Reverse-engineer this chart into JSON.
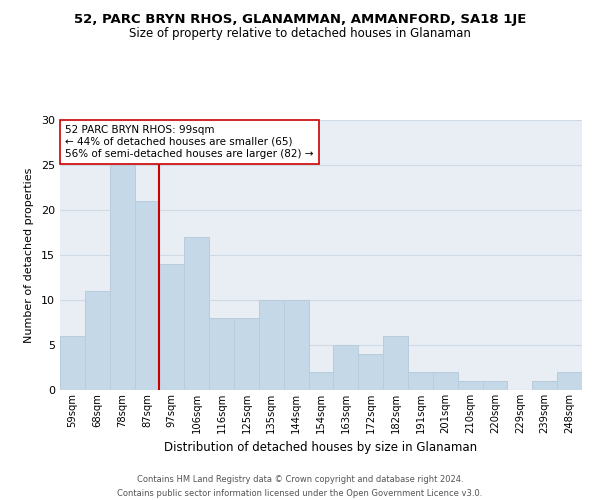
{
  "title": "52, PARC BRYN RHOS, GLANAMMAN, AMMANFORD, SA18 1JE",
  "subtitle": "Size of property relative to detached houses in Glanaman",
  "xlabel": "Distribution of detached houses by size in Glanaman",
  "ylabel": "Number of detached properties",
  "categories": [
    "59sqm",
    "68sqm",
    "78sqm",
    "87sqm",
    "97sqm",
    "106sqm",
    "116sqm",
    "125sqm",
    "135sqm",
    "144sqm",
    "154sqm",
    "163sqm",
    "172sqm",
    "182sqm",
    "191sqm",
    "201sqm",
    "210sqm",
    "220sqm",
    "229sqm",
    "239sqm",
    "248sqm"
  ],
  "values": [
    6,
    11,
    25,
    21,
    14,
    17,
    8,
    8,
    10,
    10,
    2,
    5,
    4,
    6,
    2,
    2,
    1,
    1,
    0,
    1,
    2
  ],
  "bar_color": "#c5d8e8",
  "bar_edge_color": "#b8ccdc",
  "grid_color": "#d0dae4",
  "background_color": "#e8eef4",
  "vline_color": "#cc0000",
  "vline_x": 4,
  "annotation_text": "52 PARC BRYN RHOS: 99sqm\n← 44% of detached houses are smaller (65)\n56% of semi-detached houses are larger (82) →",
  "annotation_box_color": "white",
  "annotation_box_edge": "#cc0000",
  "footer": "Contains HM Land Registry data © Crown copyright and database right 2024.\nContains public sector information licensed under the Open Government Licence v3.0.",
  "ylim": [
    0,
    30
  ],
  "yticks": [
    0,
    5,
    10,
    15,
    20,
    25,
    30
  ]
}
